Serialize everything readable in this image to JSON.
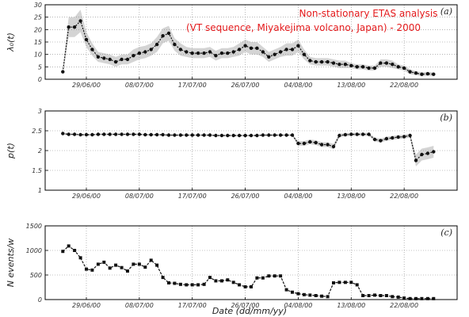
{
  "title_lines": [
    "Non-stationary ETAS analysis",
    "(VT sequence, Miyakejima volcano, Japan) - 2000"
  ],
  "xlabel": "Date (dd/mm/yy)",
  "x_tick_labels": [
    "29/06/00",
    "08/07/00",
    "17/07/00",
    "26/07/00",
    "04/08/00",
    "13/08/00",
    "22/08/00"
  ],
  "x_tick_pos": [
    4,
    13,
    22,
    31,
    40,
    49,
    58
  ],
  "x_range": [
    -3,
    67
  ],
  "colors": {
    "title": "#e41a1c",
    "band": "#d4d4d4",
    "line": "#111111"
  },
  "chart_data": [
    {
      "type": "line",
      "panel_label": "(a)",
      "ylabel": "λ₀(t)",
      "ylim": [
        0,
        30
      ],
      "yticks": [
        0,
        5,
        10,
        15,
        20,
        25,
        30
      ],
      "grid": true,
      "x": [
        0,
        1,
        2,
        3,
        4,
        5,
        6,
        7,
        8,
        9,
        10,
        11,
        12,
        13,
        14,
        15,
        16,
        17,
        18,
        19,
        20,
        21,
        22,
        23,
        24,
        25,
        26,
        27,
        28,
        29,
        30,
        31,
        32,
        33,
        34,
        35,
        36,
        37,
        38,
        39,
        40,
        41,
        42,
        43,
        44,
        45,
        46,
        47,
        48,
        49,
        50,
        51,
        52,
        53,
        54,
        55,
        56,
        57,
        58,
        59,
        60,
        61,
        62,
        63
      ],
      "values": [
        3,
        21,
        21,
        23.5,
        16,
        12,
        9,
        8.5,
        8,
        7,
        8,
        8,
        9.5,
        10.5,
        11,
        12,
        14,
        17.5,
        18.5,
        14,
        12,
        11,
        10.5,
        10.5,
        10.5,
        11,
        9.5,
        10.5,
        10.5,
        11,
        12,
        13.5,
        12.5,
        12.5,
        11,
        9,
        10,
        11,
        12,
        12,
        13.5,
        10,
        7.5,
        7,
        7,
        7,
        6.5,
        6,
        6,
        5.5,
        5,
        5,
        4.5,
        4.5,
        6.5,
        6.5,
        6,
        5,
        4.5,
        3,
        2.5,
        2,
        2.2,
        2
      ],
      "band_halfwidth": [
        1,
        4,
        4,
        4.5,
        3,
        2.5,
        2,
        2,
        2,
        2,
        2,
        2,
        2.5,
        2.5,
        2.5,
        2.5,
        3,
        3,
        3,
        2.5,
        2.5,
        2,
        2,
        2,
        2,
        2,
        2,
        2,
        2,
        2,
        2.5,
        2.5,
        2.5,
        2.5,
        2,
        2,
        2,
        2,
        2.5,
        2.5,
        2.5,
        2,
        1.5,
        1.5,
        1.5,
        1.5,
        1.5,
        1.5,
        1.5,
        1,
        1,
        1,
        1,
        1,
        1.5,
        1.5,
        1.5,
        1,
        1,
        1,
        0.8,
        0.8,
        0.8,
        0.8
      ]
    },
    {
      "type": "line",
      "panel_label": "(b)",
      "ylabel": "p(t)",
      "ylim": [
        1,
        3
      ],
      "yticks": [
        1,
        1.5,
        2,
        2.5,
        3
      ],
      "grid": true,
      "x": [
        0,
        1,
        2,
        3,
        4,
        5,
        6,
        7,
        8,
        9,
        10,
        11,
        12,
        13,
        14,
        15,
        16,
        17,
        18,
        19,
        20,
        21,
        22,
        23,
        24,
        25,
        26,
        27,
        28,
        29,
        30,
        31,
        32,
        33,
        34,
        35,
        36,
        37,
        38,
        39,
        40,
        41,
        42,
        43,
        44,
        45,
        46,
        47,
        48,
        49,
        50,
        51,
        52,
        53,
        54,
        55,
        56,
        57,
        58,
        59,
        60,
        61,
        62,
        63
      ],
      "values": [
        2.43,
        2.41,
        2.41,
        2.4,
        2.4,
        2.4,
        2.41,
        2.41,
        2.41,
        2.41,
        2.41,
        2.41,
        2.41,
        2.41,
        2.4,
        2.4,
        2.4,
        2.4,
        2.39,
        2.39,
        2.39,
        2.39,
        2.39,
        2.39,
        2.39,
        2.39,
        2.38,
        2.38,
        2.38,
        2.38,
        2.38,
        2.38,
        2.38,
        2.38,
        2.39,
        2.39,
        2.39,
        2.39,
        2.39,
        2.39,
        2.18,
        2.18,
        2.22,
        2.2,
        2.15,
        2.15,
        2.1,
        2.38,
        2.4,
        2.41,
        2.41,
        2.41,
        2.41,
        2.28,
        2.25,
        2.3,
        2.32,
        2.34,
        2.35,
        2.38,
        1.75,
        1.9,
        1.93,
        1.97
      ],
      "band_halfwidth": [
        0.03,
        0.02,
        0.02,
        0.02,
        0.02,
        0.02,
        0.02,
        0.02,
        0.02,
        0.02,
        0.02,
        0.02,
        0.02,
        0.02,
        0.02,
        0.02,
        0.02,
        0.02,
        0.02,
        0.02,
        0.02,
        0.02,
        0.02,
        0.02,
        0.02,
        0.02,
        0.02,
        0.02,
        0.02,
        0.02,
        0.02,
        0.02,
        0.02,
        0.02,
        0.02,
        0.02,
        0.02,
        0.02,
        0.02,
        0.02,
        0.06,
        0.06,
        0.06,
        0.06,
        0.06,
        0.06,
        0.07,
        0.05,
        0.04,
        0.04,
        0.04,
        0.04,
        0.04,
        0.05,
        0.05,
        0.05,
        0.05,
        0.05,
        0.05,
        0.05,
        0.15,
        0.15,
        0.15,
        0.15
      ]
    },
    {
      "type": "line",
      "panel_label": "(c)",
      "ylabel": "N events/w",
      "ylim": [
        0,
        1500
      ],
      "yticks": [
        0,
        500,
        1000,
        1500
      ],
      "grid": true,
      "x": [
        0,
        1,
        2,
        3,
        4,
        5,
        6,
        7,
        8,
        9,
        10,
        11,
        12,
        13,
        14,
        15,
        16,
        17,
        18,
        19,
        20,
        21,
        22,
        23,
        24,
        25,
        26,
        27,
        28,
        29,
        30,
        31,
        32,
        33,
        34,
        35,
        36,
        37,
        38,
        39,
        40,
        41,
        42,
        43,
        44,
        45,
        46,
        47,
        48,
        49,
        50,
        51,
        52,
        53,
        54,
        55,
        56,
        57,
        58,
        59,
        60,
        61,
        62,
        63
      ],
      "values": [
        980,
        1090,
        1000,
        850,
        620,
        600,
        720,
        760,
        640,
        700,
        650,
        580,
        720,
        720,
        660,
        800,
        700,
        450,
        340,
        330,
        310,
        300,
        300,
        300,
        310,
        450,
        380,
        380,
        400,
        350,
        300,
        260,
        260,
        440,
        440,
        480,
        480,
        480,
        200,
        150,
        120,
        100,
        90,
        80,
        70,
        60,
        340,
        350,
        350,
        350,
        300,
        80,
        80,
        90,
        80,
        80,
        60,
        50,
        30,
        20,
        20,
        20,
        20,
        20
      ]
    }
  ]
}
